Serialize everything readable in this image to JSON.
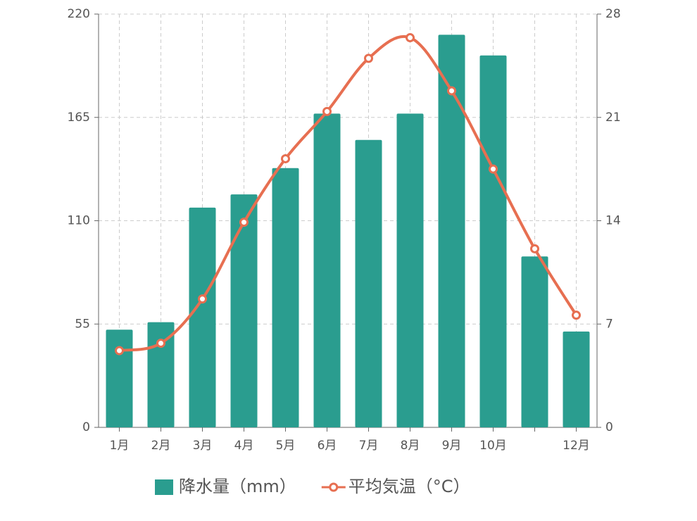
{
  "chart_data": {
    "type": "bar-line",
    "categories": [
      "1月",
      "2月",
      "3月",
      "4月",
      "5月",
      "6月",
      "7月",
      "8月",
      "9月",
      "10月",
      null,
      "12月"
    ],
    "series": [
      {
        "name": "降水量（mm）",
        "type": "bar",
        "color": "#2a9d8f",
        "values": [
          52,
          56,
          117,
          124,
          138,
          167,
          153,
          167,
          209,
          198,
          91,
          51
        ]
      },
      {
        "name": "平均気温（°C）",
        "type": "line",
        "axis": "y2",
        "color": "#e76f51",
        "values": [
          5.2,
          5.7,
          8.7,
          13.9,
          18.2,
          21.4,
          25.0,
          26.4,
          22.8,
          17.5,
          12.1,
          7.6
        ]
      }
    ],
    "ylim": [
      0,
      220
    ],
    "yticks": [
      0,
      55,
      110,
      165,
      220
    ],
    "y2lim": [
      0,
      28
    ],
    "y2ticks": [
      0,
      7,
      14,
      21,
      28
    ],
    "grid": true,
    "legend": "bottom"
  }
}
